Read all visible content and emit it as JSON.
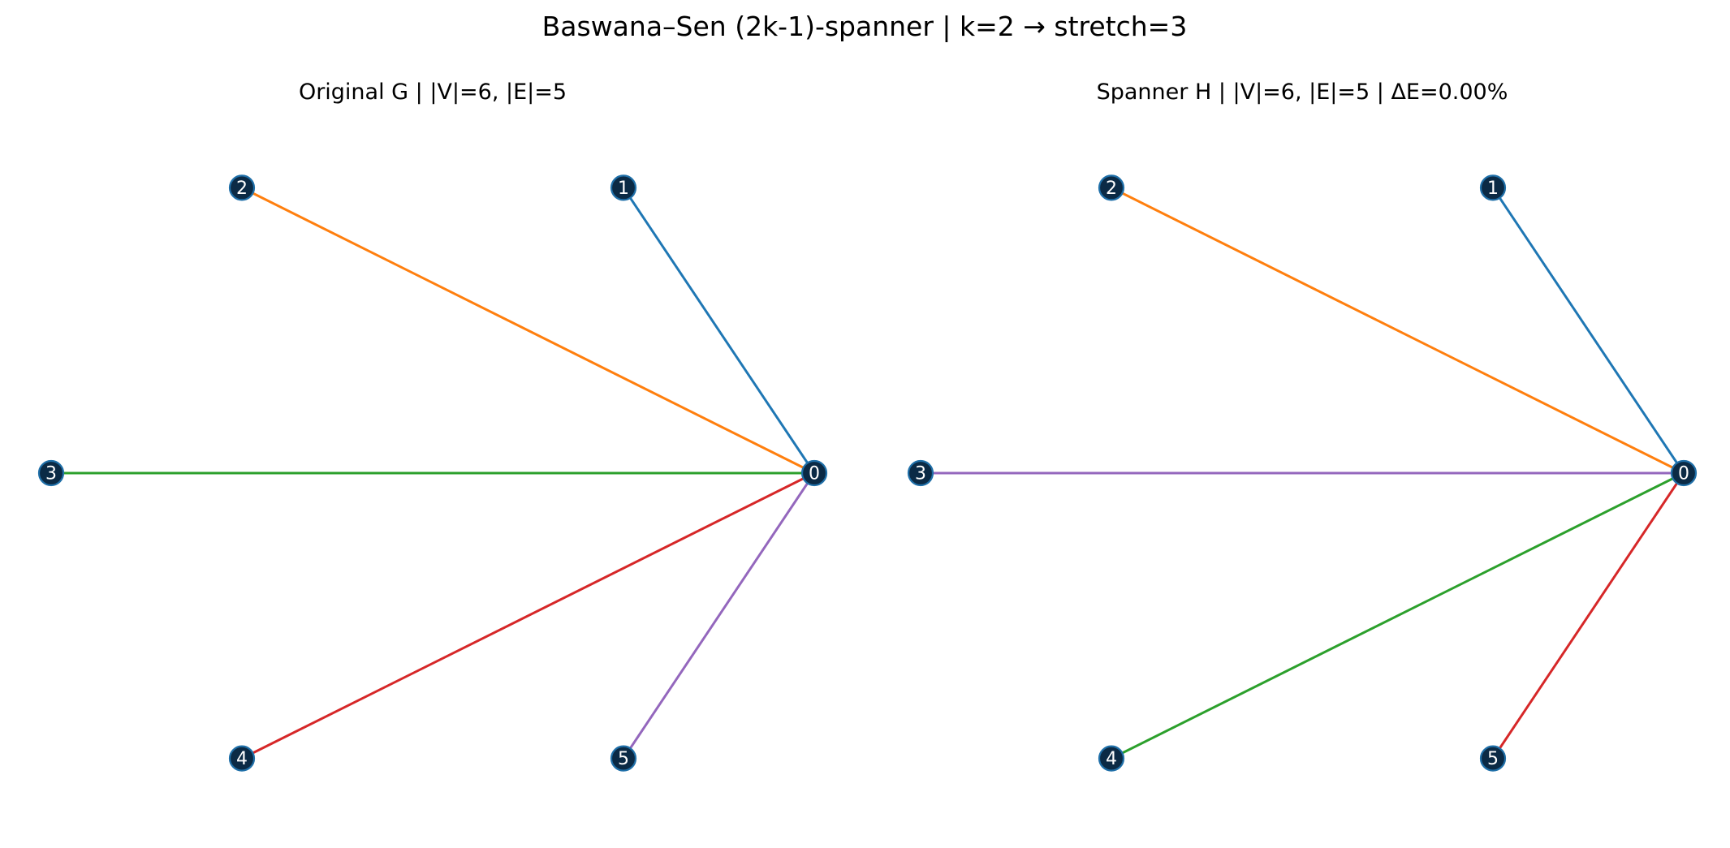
{
  "figure": {
    "title": "Baswana–Sen (2k-1)-spanner  |  k=2  →  stretch=3"
  },
  "panels": [
    {
      "key": "original",
      "title": "Original G  |  |V|=6, |E|=5",
      "nodes": [
        {
          "id": "0",
          "label": "0"
        },
        {
          "id": "1",
          "label": "1"
        },
        {
          "id": "2",
          "label": "2"
        },
        {
          "id": "3",
          "label": "3"
        },
        {
          "id": "4",
          "label": "4"
        },
        {
          "id": "5",
          "label": "5"
        }
      ],
      "edges": [
        {
          "source": "0",
          "target": "1",
          "color": "#1f77b4"
        },
        {
          "source": "0",
          "target": "2",
          "color": "#ff7f0e"
        },
        {
          "source": "0",
          "target": "3",
          "color": "#2ca02c"
        },
        {
          "source": "0",
          "target": "4",
          "color": "#d62728"
        },
        {
          "source": "0",
          "target": "5",
          "color": "#9467bd"
        }
      ]
    },
    {
      "key": "spanner",
      "title": "Spanner H  |  |V|=6, |E|=5  |  ΔE=0.00%",
      "nodes": [
        {
          "id": "0",
          "label": "0"
        },
        {
          "id": "1",
          "label": "1"
        },
        {
          "id": "2",
          "label": "2"
        },
        {
          "id": "3",
          "label": "3"
        },
        {
          "id": "4",
          "label": "4"
        },
        {
          "id": "5",
          "label": "5"
        }
      ],
      "edges": [
        {
          "source": "0",
          "target": "1",
          "color": "#1f77b4"
        },
        {
          "source": "0",
          "target": "2",
          "color": "#ff7f0e"
        },
        {
          "source": "0",
          "target": "3",
          "color": "#9467bd"
        },
        {
          "source": "0",
          "target": "4",
          "color": "#2ca02c"
        },
        {
          "source": "0",
          "target": "5",
          "color": "#d62728"
        }
      ]
    }
  ],
  "node_style": {
    "fill": "#0b2a45",
    "outline": "#1f6fa8",
    "label_color": "#ffffff"
  }
}
